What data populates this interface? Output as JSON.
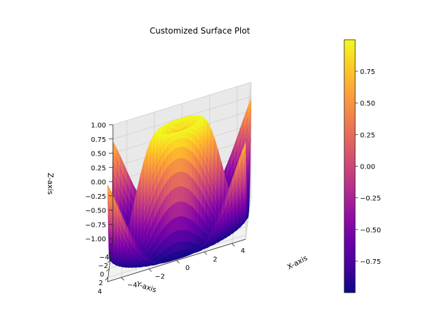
{
  "chart_data": {
    "type": "surface",
    "title": "Customized Surface Plot",
    "xlabel": "X-axis",
    "ylabel": "Y-axis",
    "zlabel": "Z-axis",
    "function": "z = sin(sqrt(x^2 + y^2))",
    "x_range": [
      -5,
      5
    ],
    "y_range": [
      -5,
      5
    ],
    "zlim": [
      -1,
      1
    ],
    "x_ticks": [
      "−4",
      "−2",
      "0",
      "2",
      "4"
    ],
    "y_ticks": [
      "−4",
      "−2",
      "0",
      "2",
      "4"
    ],
    "z_ticks": [
      "−1.00",
      "−0.75",
      "−0.50",
      "−0.25",
      "0.00",
      "0.25",
      "0.50",
      "0.75",
      "1.00"
    ],
    "colormap": "plasma",
    "colorbar": {
      "range": [
        -0.999,
        0.999
      ],
      "ticks": [
        "−0.75",
        "−0.50",
        "−0.25",
        "0.00",
        "0.25",
        "0.50",
        "0.75"
      ],
      "tick_values": [
        -0.75,
        -0.5,
        -0.25,
        0,
        0.25,
        0.5,
        0.75
      ]
    },
    "grid": true
  }
}
